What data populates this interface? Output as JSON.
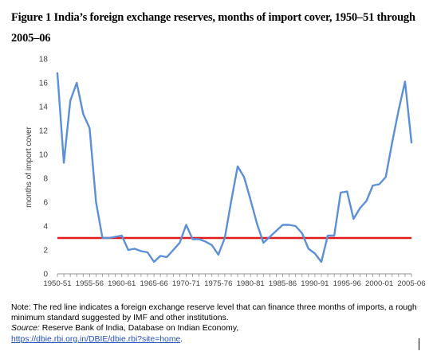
{
  "figure": {
    "title": "Figure 1 India’s foreign exchange reserves, months of import cover, 1950–51 through 2005–06"
  },
  "note": {
    "text": "Note: The red line indicates a foreign exchange reserve level that can finance three months of imports, a rough minimum standard suggested by IMF and other institutions.",
    "source_label": "Source:",
    "source_text": " Reserve Bank of India, Database on Indian Economy,",
    "link": "https://dbie.rbi.org.in/DBIE/dbie.rbi?site=home",
    "trailing": "."
  },
  "chart_data": {
    "type": "line",
    "title": "",
    "xlabel": "",
    "ylabel": "months of import cover",
    "ylim": [
      0,
      18
    ],
    "yticks": [
      0,
      2,
      4,
      6,
      8,
      10,
      12,
      14,
      16,
      18
    ],
    "grid": false,
    "legend": "none",
    "x_tick_labels": [
      "1950-51",
      "1955-56",
      "1960-61",
      "1965-66",
      "1970-71",
      "1975-76",
      "1980-81",
      "1985-86",
      "1990-91",
      "1995-96",
      "2000-01",
      "2005-06"
    ],
    "x_tick_every": 5,
    "categories": [
      "1950-51",
      "1951-52",
      "1952-53",
      "1953-54",
      "1954-55",
      "1955-56",
      "1956-57",
      "1957-58",
      "1958-59",
      "1959-60",
      "1960-61",
      "1961-62",
      "1962-63",
      "1963-64",
      "1964-65",
      "1965-66",
      "1966-67",
      "1967-68",
      "1968-69",
      "1969-70",
      "1970-71",
      "1971-72",
      "1972-73",
      "1973-74",
      "1974-75",
      "1975-76",
      "1976-77",
      "1977-78",
      "1978-79",
      "1979-80",
      "1980-81",
      "1981-82",
      "1982-83",
      "1983-84",
      "1984-85",
      "1985-86",
      "1986-87",
      "1987-88",
      "1988-89",
      "1989-90",
      "1990-91",
      "1991-92",
      "1992-93",
      "1993-94",
      "1994-95",
      "1995-96",
      "1996-97",
      "1997-98",
      "1998-99",
      "1999-00",
      "2000-01",
      "2001-02",
      "2002-03",
      "2003-04",
      "2004-05",
      "2005-06"
    ],
    "series": [
      {
        "color": "#5b8fd6",
        "values": [
          16.8,
          9.3,
          14.5,
          16.0,
          13.4,
          12.2,
          6.0,
          3.0,
          3.0,
          3.1,
          3.2,
          2.0,
          2.1,
          1.9,
          1.8,
          1.0,
          1.5,
          1.4,
          2.0,
          2.6,
          4.1,
          2.9,
          2.9,
          2.7,
          2.4,
          1.6,
          3.0,
          6.1,
          9.0,
          8.1,
          6.2,
          4.2,
          2.6,
          3.1,
          3.6,
          4.1,
          4.1,
          4.0,
          3.4,
          2.1,
          1.7,
          1.0,
          3.2,
          3.2,
          6.8,
          6.9,
          4.6,
          5.5,
          6.1,
          7.4,
          7.5,
          8.1,
          11.0,
          13.7,
          16.1,
          11.0
        ]
      }
    ],
    "reference_line": {
      "value": 3,
      "color": "#e31a1c"
    }
  }
}
